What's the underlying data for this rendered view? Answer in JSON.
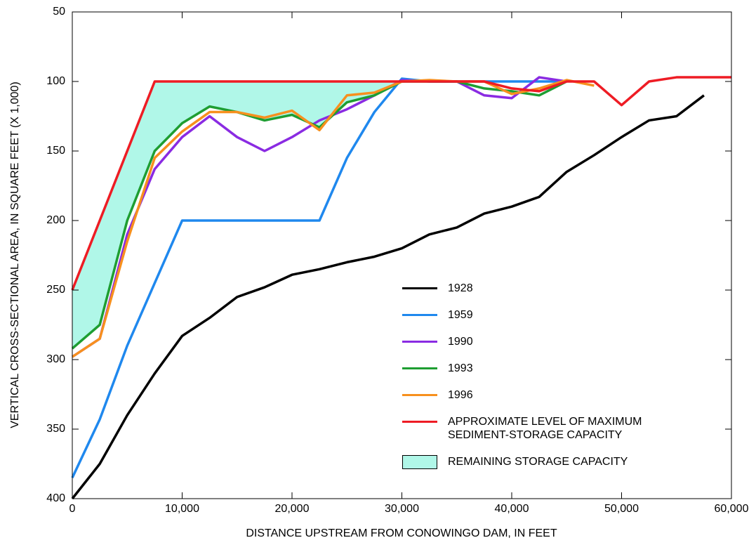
{
  "chart_data": {
    "type": "line",
    "xlabel": "DISTANCE UPSTREAM FROM CONOWINGO DAM, IN FEET",
    "ylabel": "VERTICAL CROSS-SECTIONAL AREA, IN SQUARE FEET (X 1,000)",
    "xlim": [
      0,
      60000
    ],
    "ylim": [
      400,
      50
    ],
    "xticks": [
      0,
      {
        "value": 10000,
        "label": "10,000"
      },
      {
        "value": 20000,
        "label": "20,000"
      },
      {
        "value": 30000,
        "label": "30,000"
      },
      {
        "value": 40000,
        "label": "40,000"
      },
      {
        "value": 50000,
        "label": "50,000"
      },
      {
        "value": 60000,
        "label": "60,000"
      }
    ],
    "yticks": [
      50,
      100,
      150,
      200,
      250,
      300,
      350,
      400
    ],
    "series": [
      {
        "name": "1928",
        "color": "#000000",
        "x": [
          0,
          2500,
          5000,
          7500,
          10000,
          12500,
          15000,
          17500,
          20000,
          22500,
          25000,
          27500,
          30000,
          32500,
          35000,
          37500,
          40000,
          42500,
          45000,
          47500,
          50000,
          52500,
          55000,
          57500
        ],
        "values": [
          400,
          375,
          340,
          310,
          283,
          270,
          255,
          248,
          239,
          235,
          230,
          226,
          220,
          210,
          205,
          195,
          190,
          183,
          165,
          153,
          140,
          128,
          125,
          110
        ]
      },
      {
        "name": "1959",
        "color": "#1f88ee",
        "x": [
          0,
          2500,
          5000,
          7500,
          10000,
          12500,
          15000,
          17500,
          20000,
          22500,
          25000,
          27500,
          30000,
          32500,
          35000,
          37500,
          40000,
          42500,
          45000
        ],
        "values": [
          385,
          343,
          290,
          245,
          200,
          200,
          200,
          200,
          200,
          200,
          155,
          122,
          98,
          100,
          100,
          100,
          100,
          100,
          100
        ]
      },
      {
        "name": "1990",
        "color": "#8a2be2",
        "x": [
          0,
          2500,
          5000,
          7500,
          10000,
          12500,
          15000,
          17500,
          20000,
          22500,
          25000,
          27500,
          30000,
          32500,
          35000,
          37500,
          40000,
          42500,
          45000
        ],
        "values": [
          298,
          285,
          210,
          163,
          140,
          125,
          140,
          150,
          140,
          128,
          120,
          110,
          99,
          100,
          100,
          110,
          112,
          97,
          100
        ]
      },
      {
        "name": "1993",
        "color": "#1e9e32",
        "x": [
          0,
          2500,
          5000,
          7500,
          10000,
          12500,
          15000,
          17500,
          20000,
          22500,
          25000,
          27500,
          30000,
          32500,
          35000,
          37500,
          40000,
          42500,
          45000
        ],
        "values": [
          292,
          275,
          200,
          150,
          130,
          118,
          122,
          128,
          124,
          133,
          115,
          110,
          100,
          100,
          100,
          105,
          107,
          110,
          100
        ]
      },
      {
        "name": "1996",
        "color": "#f7901e",
        "x": [
          0,
          2500,
          5000,
          7500,
          10000,
          12500,
          15000,
          17500,
          20000,
          22500,
          25000,
          27500,
          30000,
          32500,
          35000,
          37500,
          40000,
          42500,
          45000,
          47500
        ],
        "values": [
          298,
          285,
          215,
          155,
          136,
          122,
          122,
          126,
          121,
          135,
          110,
          108,
          100,
          99,
          100,
          100,
          109,
          105,
          99,
          103
        ]
      },
      {
        "name": "APPROXIMATE LEVEL OF MAXIMUM\nSEDIMENT-STORAGE CAPACITY",
        "color": "#ee1c24",
        "x": [
          0,
          7500,
          30000,
          35000,
          37500,
          40000,
          42500,
          45000,
          47500,
          50000,
          52500,
          55000,
          60000
        ],
        "values": [
          250,
          100,
          100,
          100,
          100,
          105,
          107,
          100,
          100,
          117,
          100,
          97,
          97
        ]
      }
    ],
    "fill": {
      "name": "REMAINING STORAGE CAPACITY",
      "color": "#b0f7e8",
      "between": [
        5,
        3
      ],
      "x_range": [
        0,
        30000
      ]
    }
  }
}
